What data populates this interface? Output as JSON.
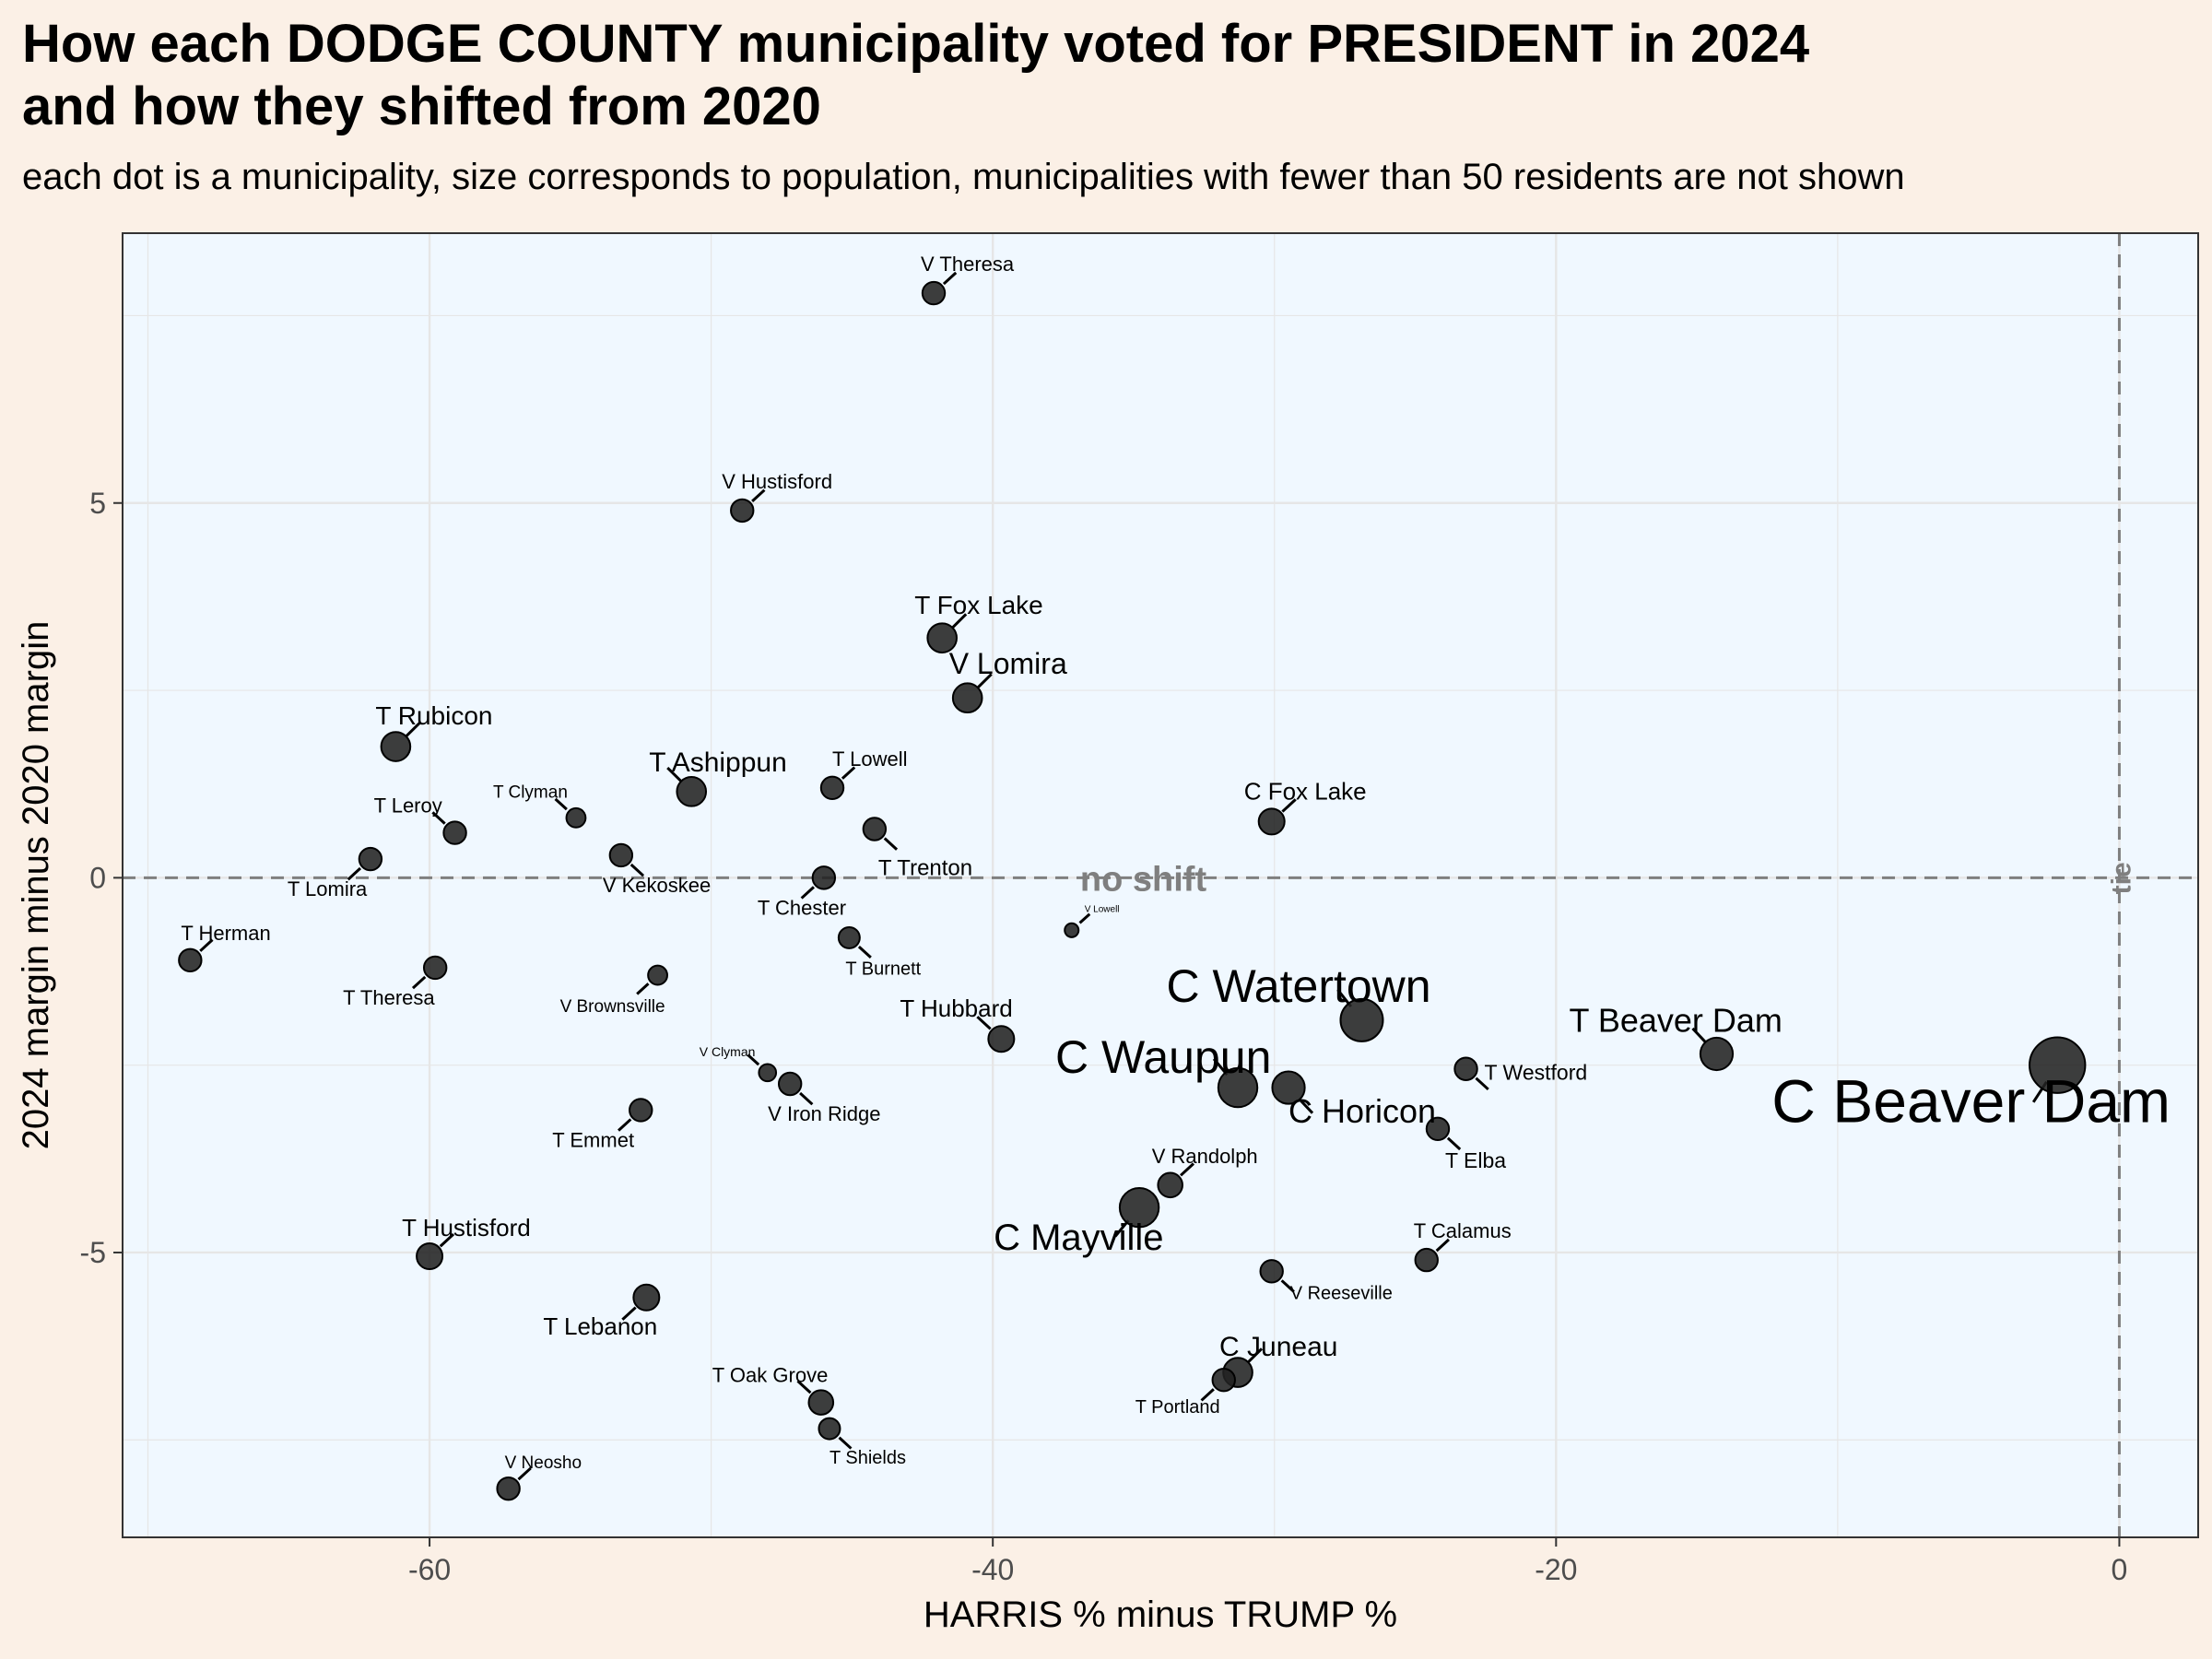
{
  "title_line1": "How each DODGE COUNTY municipality voted for PRESIDENT in 2024",
  "title_line2": "and how they shifted from 2020",
  "subtitle": "each dot is a municipality, size corresponds to population, municipalities with fewer than 50 residents are not shown",
  "colors": {
    "page_bg": "#fbf0e6",
    "panel_bg": "#f0f8ff",
    "grid": "#e6e6e6",
    "point": "#222222",
    "reference_line": "#7f7f7f"
  },
  "chart_data": {
    "type": "scatter",
    "xlabel": "HARRIS % minus TRUMP %",
    "ylabel": "2024 margin minus 2020 margin",
    "xlim": [
      -70.9,
      2.8
    ],
    "ylim": [
      -8.8,
      8.6
    ],
    "x_ticks": [
      -60,
      -40,
      -20,
      0
    ],
    "y_ticks": [
      -5,
      0,
      5
    ],
    "grid": true,
    "reference_lines": [
      {
        "axis": "y",
        "value": 0,
        "label": "no shift"
      },
      {
        "axis": "x",
        "value": 0,
        "label": "tie"
      }
    ],
    "points": [
      {
        "name": "V Theresa",
        "x": -42.1,
        "y": 7.8,
        "size": 2
      },
      {
        "name": "V Hustisford",
        "x": -48.9,
        "y": 4.9,
        "size": 2
      },
      {
        "name": "T Fox Lake",
        "x": -41.8,
        "y": 3.2,
        "size": 3
      },
      {
        "name": "V Lomira",
        "x": -40.9,
        "y": 2.4,
        "size": 3
      },
      {
        "name": "T Rubicon",
        "x": -61.2,
        "y": 1.75,
        "size": 3
      },
      {
        "name": "T Ashippun",
        "x": -50.7,
        "y": 1.15,
        "size": 3
      },
      {
        "name": "T Lowell",
        "x": -45.7,
        "y": 1.2,
        "size": 2
      },
      {
        "name": "T Clyman",
        "x": -54.8,
        "y": 0.8,
        "size": 1.5
      },
      {
        "name": "T Leroy",
        "x": -59.1,
        "y": 0.6,
        "size": 2
      },
      {
        "name": "T Trenton",
        "x": -44.2,
        "y": 0.65,
        "size": 2
      },
      {
        "name": "C Fox Lake",
        "x": -30.1,
        "y": 0.75,
        "size": 2.5
      },
      {
        "name": "T Lomira",
        "x": -62.1,
        "y": 0.25,
        "size": 2
      },
      {
        "name": "V Kekoskee",
        "x": -53.2,
        "y": 0.3,
        "size": 2
      },
      {
        "name": "T Chester",
        "x": -46.0,
        "y": 0.0,
        "size": 2
      },
      {
        "name": "V Lowell",
        "x": -37.2,
        "y": -0.7,
        "size": 0.7
      },
      {
        "name": "T Herman",
        "x": -68.5,
        "y": -1.1,
        "size": 2
      },
      {
        "name": "T Theresa",
        "x": -59.8,
        "y": -1.2,
        "size": 2
      },
      {
        "name": "V Brownsville",
        "x": -51.9,
        "y": -1.3,
        "size": 1.5
      },
      {
        "name": "T Burnett",
        "x": -45.1,
        "y": -0.8,
        "size": 1.8
      },
      {
        "name": "T Hubbard",
        "x": -39.7,
        "y": -2.15,
        "size": 2.5
      },
      {
        "name": "C Watertown",
        "x": -26.9,
        "y": -1.9,
        "size": 5
      },
      {
        "name": "T Beaver Dam",
        "x": -14.3,
        "y": -2.35,
        "size": 3.5
      },
      {
        "name": "C Beaver Dam",
        "x": -2.2,
        "y": -2.5,
        "size": 7
      },
      {
        "name": "V Clyman",
        "x": -48.0,
        "y": -2.6,
        "size": 1.2
      },
      {
        "name": "V Iron Ridge",
        "x": -47.2,
        "y": -2.75,
        "size": 2
      },
      {
        "name": "C Waupun",
        "x": -31.3,
        "y": -2.8,
        "size": 4.5
      },
      {
        "name": "C Horicon",
        "x": -29.5,
        "y": -2.8,
        "size": 3.5
      },
      {
        "name": "T Westford",
        "x": -23.2,
        "y": -2.55,
        "size": 2
      },
      {
        "name": "T Emmet",
        "x": -52.5,
        "y": -3.1,
        "size": 2
      },
      {
        "name": "T Elba",
        "x": -24.2,
        "y": -3.35,
        "size": 2
      },
      {
        "name": "V Randolph",
        "x": -33.7,
        "y": -4.1,
        "size": 2.3
      },
      {
        "name": "C Mayville",
        "x": -34.8,
        "y": -4.4,
        "size": 4.5
      },
      {
        "name": "T Hustisford",
        "x": -60.0,
        "y": -5.05,
        "size": 2.5
      },
      {
        "name": "T Calamus",
        "x": -24.6,
        "y": -5.1,
        "size": 2
      },
      {
        "name": "V Reeseville",
        "x": -30.1,
        "y": -5.25,
        "size": 2
      },
      {
        "name": "T Lebanon",
        "x": -52.3,
        "y": -5.6,
        "size": 2.5
      },
      {
        "name": "C Juneau",
        "x": -31.3,
        "y": -6.6,
        "size": 3
      },
      {
        "name": "T Portland",
        "x": -31.8,
        "y": -6.7,
        "size": 2
      },
      {
        "name": "T Oak Grove",
        "x": -46.1,
        "y": -7.0,
        "size": 2.3
      },
      {
        "name": "T Shields",
        "x": -45.8,
        "y": -7.35,
        "size": 1.8
      },
      {
        "name": "V Neosho",
        "x": -57.2,
        "y": -8.15,
        "size": 2
      }
    ]
  }
}
